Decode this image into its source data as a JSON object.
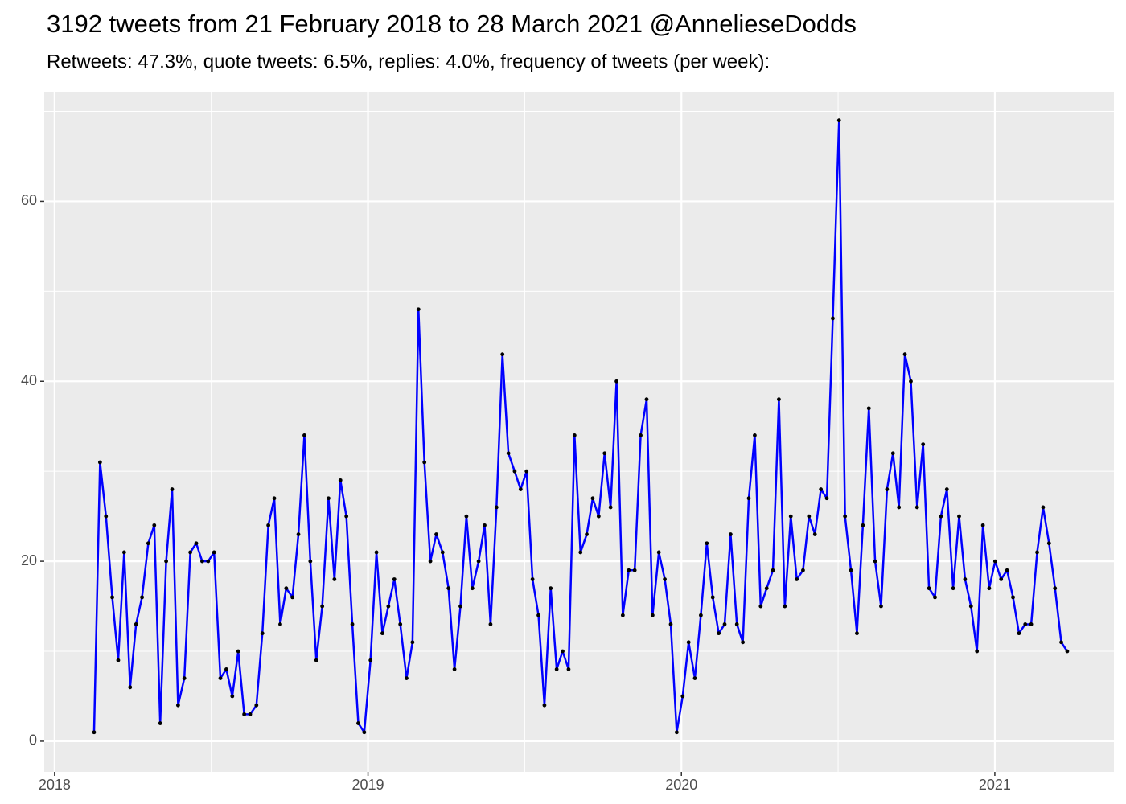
{
  "chart_data": {
    "type": "line",
    "title": "3192 tweets from 21 February 2018 to 28 March 2021 @AnnelieseDodds",
    "subtitle": "Retweets: 47.3%, quote tweets: 6.5%, replies: 4.0%, frequency of tweets (per week):",
    "x": [
      2018.126,
      2018.145,
      2018.164,
      2018.184,
      2018.203,
      2018.222,
      2018.241,
      2018.26,
      2018.279,
      2018.299,
      2018.318,
      2018.337,
      2018.356,
      2018.375,
      2018.394,
      2018.414,
      2018.433,
      2018.452,
      2018.471,
      2018.49,
      2018.509,
      2018.529,
      2018.548,
      2018.567,
      2018.586,
      2018.605,
      2018.624,
      2018.644,
      2018.663,
      2018.682,
      2018.701,
      2018.72,
      2018.739,
      2018.759,
      2018.778,
      2018.797,
      2018.816,
      2018.835,
      2018.854,
      2018.874,
      2018.893,
      2018.912,
      2018.931,
      2018.95,
      2018.969,
      2018.988,
      2019.008,
      2019.027,
      2019.046,
      2019.065,
      2019.084,
      2019.103,
      2019.123,
      2019.142,
      2019.161,
      2019.18,
      2019.199,
      2019.218,
      2019.238,
      2019.257,
      2019.276,
      2019.295,
      2019.314,
      2019.333,
      2019.353,
      2019.372,
      2019.391,
      2019.41,
      2019.429,
      2019.448,
      2019.468,
      2019.487,
      2019.506,
      2019.525,
      2019.544,
      2019.563,
      2019.583,
      2019.602,
      2019.621,
      2019.64,
      2019.659,
      2019.678,
      2019.698,
      2019.717,
      2019.736,
      2019.755,
      2019.774,
      2019.793,
      2019.813,
      2019.832,
      2019.851,
      2019.87,
      2019.889,
      2019.908,
      2019.928,
      2019.947,
      2019.966,
      2019.985,
      2020.004,
      2020.023,
      2020.043,
      2020.062,
      2020.081,
      2020.1,
      2020.119,
      2020.138,
      2020.157,
      2020.177,
      2020.196,
      2020.215,
      2020.234,
      2020.253,
      2020.272,
      2020.292,
      2020.311,
      2020.33,
      2020.349,
      2020.368,
      2020.388,
      2020.407,
      2020.426,
      2020.445,
      2020.464,
      2020.483,
      2020.503,
      2020.522,
      2020.541,
      2020.56,
      2020.579,
      2020.598,
      2020.618,
      2020.637,
      2020.656,
      2020.675,
      2020.694,
      2020.713,
      2020.732,
      2020.752,
      2020.771,
      2020.79,
      2020.809,
      2020.828,
      2020.847,
      2020.867,
      2020.886,
      2020.905,
      2020.924,
      2020.943,
      2020.962,
      2020.982,
      2021.001,
      2021.02,
      2021.039,
      2021.058,
      2021.077,
      2021.097,
      2021.116,
      2021.135,
      2021.154,
      2021.173,
      2021.192,
      2021.212,
      2021.231
    ],
    "series": [
      {
        "color": "#0000ff",
        "point_color": "#000000",
        "values": [
          1,
          31,
          25,
          16,
          9,
          21,
          6,
          13,
          16,
          22,
          24,
          2,
          20,
          28,
          4,
          7,
          21,
          22,
          20,
          20,
          21,
          7,
          8,
          5,
          10,
          3,
          3,
          4,
          12,
          24,
          27,
          13,
          17,
          16,
          23,
          34,
          20,
          9,
          15,
          27,
          18,
          29,
          25,
          13,
          2,
          1,
          9,
          21,
          12,
          15,
          18,
          13,
          7,
          11,
          48,
          31,
          20,
          23,
          21,
          17,
          8,
          15,
          25,
          17,
          20,
          24,
          13,
          26,
          43,
          32,
          30,
          28,
          30,
          18,
          14,
          4,
          17,
          8,
          10,
          8,
          34,
          21,
          23,
          27,
          25,
          32,
          26,
          40,
          14,
          19,
          19,
          34,
          38,
          14,
          21,
          18,
          13,
          1,
          5,
          11,
          7,
          14,
          22,
          16,
          12,
          13,
          23,
          13,
          11,
          27,
          34,
          15,
          17,
          19,
          38,
          15,
          25,
          18,
          19,
          25,
          23,
          28,
          27,
          47,
          69,
          25,
          19,
          12,
          24,
          37,
          20,
          15,
          28,
          32,
          26,
          43,
          40,
          26,
          33,
          17,
          16,
          25,
          28,
          17,
          25,
          18,
          15,
          10,
          24,
          17,
          20,
          18,
          19,
          16,
          12,
          13,
          13,
          21,
          26,
          22,
          17,
          11,
          10
        ]
      }
    ],
    "xlim": [
      2017.967,
      2021.38
    ],
    "ylim": [
      -3.4,
      72.1
    ],
    "xticks": [
      2018,
      2019,
      2020,
      2021
    ],
    "yticks": [
      0,
      20,
      40,
      60
    ],
    "grid": true
  }
}
